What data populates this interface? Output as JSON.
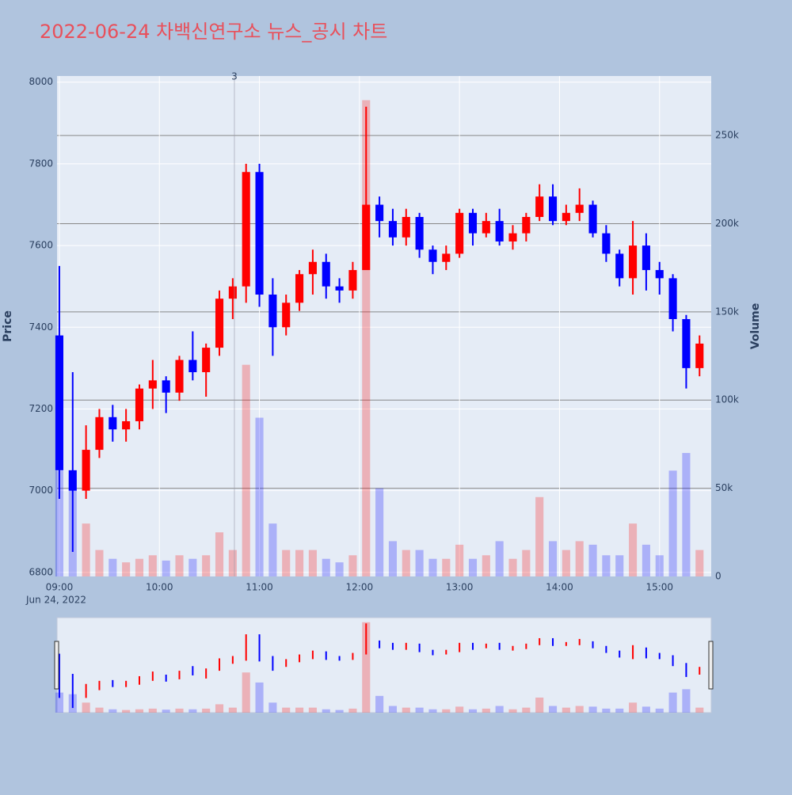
{
  "chart_data": {
    "type": "candlestick",
    "title": "2022-06-24 차백신연구소 뉴스_공시 차트",
    "ylabel": "Price",
    "y2label": "Volume",
    "x_date_label": "Jun 24, 2022",
    "increasing_color": "#ff0000",
    "decreasing_color": "#0000ff",
    "x": [
      540,
      548,
      556,
      564,
      572,
      580,
      588,
      596,
      604,
      612,
      620,
      628,
      636,
      644,
      652,
      660,
      668,
      676,
      684,
      692,
      700,
      708,
      716,
      724,
      732,
      740,
      748,
      756,
      764,
      772,
      780,
      788,
      796,
      804,
      812,
      820,
      828,
      836,
      844,
      852,
      860,
      868,
      876,
      884,
      892,
      900,
      908,
      916,
      924
    ],
    "open": [
      7380,
      7050,
      7000,
      7100,
      7180,
      7150,
      7170,
      7250,
      7270,
      7240,
      7320,
      7290,
      7350,
      7470,
      7500,
      7780,
      7480,
      7400,
      7460,
      7530,
      7560,
      7500,
      7490,
      7540,
      7700,
      7660,
      7620,
      7670,
      7590,
      7560,
      7580,
      7680,
      7630,
      7660,
      7610,
      7630,
      7670,
      7720,
      7660,
      7680,
      7700,
      7630,
      7580,
      7520,
      7600,
      7540,
      7520,
      7420,
      7300
    ],
    "high": [
      7550,
      7290,
      7160,
      7200,
      7210,
      7200,
      7260,
      7320,
      7280,
      7330,
      7390,
      7360,
      7490,
      7520,
      7800,
      7800,
      7520,
      7480,
      7540,
      7590,
      7580,
      7520,
      7560,
      7940,
      7720,
      7690,
      7690,
      7680,
      7600,
      7600,
      7690,
      7690,
      7680,
      7690,
      7650,
      7680,
      7750,
      7750,
      7700,
      7740,
      7710,
      7650,
      7590,
      7660,
      7630,
      7560,
      7530,
      7430,
      7380
    ],
    "low": [
      6980,
      6850,
      6980,
      7080,
      7120,
      7120,
      7150,
      7200,
      7190,
      7220,
      7270,
      7230,
      7330,
      7420,
      7460,
      7450,
      7330,
      7380,
      7440,
      7480,
      7470,
      7460,
      7470,
      7540,
      7620,
      7600,
      7600,
      7570,
      7530,
      7540,
      7570,
      7600,
      7620,
      7600,
      7590,
      7610,
      7660,
      7650,
      7650,
      7660,
      7620,
      7560,
      7500,
      7480,
      7490,
      7480,
      7390,
      7250,
      7280
    ],
    "close": [
      7050,
      7000,
      7100,
      7180,
      7150,
      7170,
      7250,
      7270,
      7240,
      7320,
      7290,
      7350,
      7470,
      7500,
      7780,
      7480,
      7400,
      7460,
      7530,
      7560,
      7500,
      7490,
      7540,
      7700,
      7660,
      7620,
      7670,
      7590,
      7560,
      7580,
      7680,
      7630,
      7660,
      7610,
      7630,
      7670,
      7720,
      7660,
      7680,
      7700,
      7630,
      7580,
      7520,
      7600,
      7540,
      7520,
      7420,
      7300,
      7360
    ],
    "volume": [
      60000,
      55000,
      30000,
      15000,
      10000,
      8000,
      10000,
      12000,
      9000,
      12000,
      10000,
      12000,
      25000,
      15000,
      120000,
      90000,
      30000,
      15000,
      15000,
      15000,
      10000,
      8000,
      12000,
      270000,
      50000,
      20000,
      15000,
      15000,
      10000,
      10000,
      18000,
      10000,
      12000,
      20000,
      10000,
      15000,
      45000,
      20000,
      15000,
      20000,
      18000,
      12000,
      12000,
      30000,
      18000,
      12000,
      60000,
      70000,
      15000
    ],
    "xlim": [
      538.6,
      931
    ],
    "xticks": [
      {
        "value": 540,
        "label": "09:00"
      },
      {
        "value": 600,
        "label": "10:00"
      },
      {
        "value": 660,
        "label": "11:00"
      },
      {
        "value": 720,
        "label": "12:00"
      },
      {
        "value": 780,
        "label": "13:00"
      },
      {
        "value": 840,
        "label": "14:00"
      },
      {
        "value": 900,
        "label": "15:00"
      }
    ],
    "ylim": [
      6790,
      8015
    ],
    "yticks": [
      6800,
      7000,
      7200,
      7400,
      7600,
      7800,
      8000
    ],
    "y2lim": [
      0,
      283700
    ],
    "y2ticks": [
      0,
      {
        "value": 50000,
        "label": "50k"
      },
      {
        "value": 100000,
        "label": "100k"
      },
      {
        "value": 150000,
        "label": "150k"
      },
      {
        "value": 200000,
        "label": "200k"
      },
      {
        "value": 250000,
        "label": "250k"
      }
    ],
    "annotations": [
      {
        "text": "3",
        "x": 645
      }
    ]
  }
}
